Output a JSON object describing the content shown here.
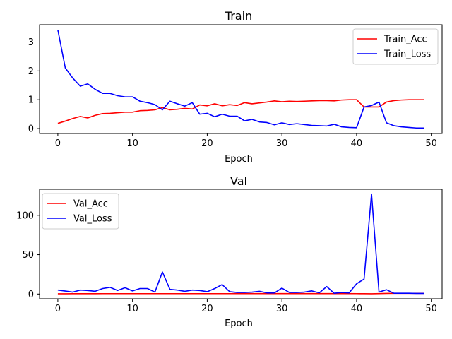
{
  "chart_data": [
    {
      "type": "line",
      "title": "Train",
      "xlabel": "Epoch",
      "ylabel": "",
      "xlim": [
        -2.45,
        51.45
      ],
      "ylim": [
        -0.17,
        3.6
      ],
      "xticks": [
        0,
        10,
        20,
        30,
        40,
        50
      ],
      "yticks": [
        0,
        1,
        2,
        3
      ],
      "legend_position": "top-right",
      "grid": false,
      "x": [
        0,
        1,
        2,
        3,
        4,
        5,
        6,
        7,
        8,
        9,
        10,
        11,
        12,
        13,
        14,
        15,
        16,
        17,
        18,
        19,
        20,
        21,
        22,
        23,
        24,
        25,
        26,
        27,
        28,
        29,
        30,
        31,
        32,
        33,
        34,
        35,
        36,
        37,
        38,
        39,
        40,
        41,
        42,
        43,
        44,
        45,
        46,
        47,
        48,
        49
      ],
      "series": [
        {
          "name": "Train_Acc",
          "color": "#ff0000",
          "values": [
            0.18,
            0.26,
            0.35,
            0.42,
            0.37,
            0.46,
            0.52,
            0.53,
            0.55,
            0.57,
            0.57,
            0.62,
            0.63,
            0.65,
            0.73,
            0.65,
            0.67,
            0.7,
            0.68,
            0.82,
            0.79,
            0.86,
            0.79,
            0.83,
            0.8,
            0.9,
            0.86,
            0.89,
            0.92,
            0.96,
            0.93,
            0.95,
            0.94,
            0.95,
            0.96,
            0.97,
            0.97,
            0.96,
            0.99,
            1.0,
            1.0,
            0.75,
            0.75,
            0.75,
            0.92,
            0.97,
            0.99,
            1.0,
            1.0,
            1.0
          ]
        },
        {
          "name": "Train_Loss",
          "color": "#0000ff",
          "values": [
            3.42,
            2.1,
            1.75,
            1.47,
            1.55,
            1.36,
            1.22,
            1.22,
            1.14,
            1.1,
            1.1,
            0.95,
            0.9,
            0.83,
            0.65,
            0.95,
            0.86,
            0.78,
            0.9,
            0.5,
            0.53,
            0.41,
            0.5,
            0.43,
            0.43,
            0.27,
            0.32,
            0.23,
            0.21,
            0.13,
            0.2,
            0.14,
            0.17,
            0.14,
            0.11,
            0.1,
            0.09,
            0.15,
            0.06,
            0.04,
            0.03,
            0.75,
            0.8,
            0.92,
            0.2,
            0.1,
            0.06,
            0.04,
            0.02,
            0.02
          ]
        }
      ]
    },
    {
      "type": "line",
      "title": "Val",
      "xlabel": "Epoch",
      "ylabel": "",
      "xlim": [
        -2.45,
        51.45
      ],
      "ylim": [
        -6.0,
        133.0
      ],
      "xticks": [
        0,
        10,
        20,
        30,
        40,
        50
      ],
      "yticks": [
        0,
        50,
        100
      ],
      "legend_position": "top-left",
      "grid": false,
      "x": [
        0,
        1,
        2,
        3,
        4,
        5,
        6,
        7,
        8,
        9,
        10,
        11,
        12,
        13,
        14,
        15,
        16,
        17,
        18,
        19,
        20,
        21,
        22,
        23,
        24,
        25,
        26,
        27,
        28,
        29,
        30,
        31,
        32,
        33,
        34,
        35,
        36,
        37,
        38,
        39,
        40,
        41,
        42,
        43,
        44,
        45,
        46,
        47,
        48,
        49
      ],
      "series": [
        {
          "name": "Val_Acc",
          "color": "#ff0000",
          "values": [
            0.3,
            0.3,
            0.4,
            0.4,
            0.4,
            0.4,
            0.5,
            0.5,
            0.5,
            0.5,
            0.5,
            0.5,
            0.5,
            0.5,
            0.5,
            0.5,
            0.5,
            0.5,
            0.5,
            0.5,
            0.5,
            0.5,
            0.5,
            0.5,
            0.6,
            0.6,
            0.6,
            0.6,
            0.6,
            0.6,
            0.6,
            0.6,
            0.6,
            0.6,
            0.6,
            0.6,
            0.6,
            0.6,
            0.6,
            0.6,
            0.5,
            0.4,
            0.3,
            0.6,
            0.8,
            0.9,
            0.9,
            0.9,
            0.9,
            0.9
          ]
        },
        {
          "name": "Val_Loss",
          "color": "#0000ff",
          "values": [
            5.0,
            3.8,
            2.5,
            5.0,
            4.5,
            3.5,
            7.0,
            8.5,
            4.5,
            8.0,
            4.0,
            7.0,
            7.0,
            2.5,
            28.0,
            6.0,
            5.0,
            3.5,
            5.0,
            4.5,
            3.0,
            7.0,
            12.0,
            3.0,
            2.0,
            2.0,
            2.5,
            3.5,
            1.5,
            1.5,
            7.5,
            2.0,
            2.0,
            2.5,
            4.0,
            1.5,
            9.5,
            1.0,
            2.0,
            1.5,
            13.0,
            19.0,
            127.0,
            2.5,
            5.5,
            1.0,
            1.0,
            1.0,
            0.8,
            0.8
          ]
        }
      ]
    }
  ]
}
